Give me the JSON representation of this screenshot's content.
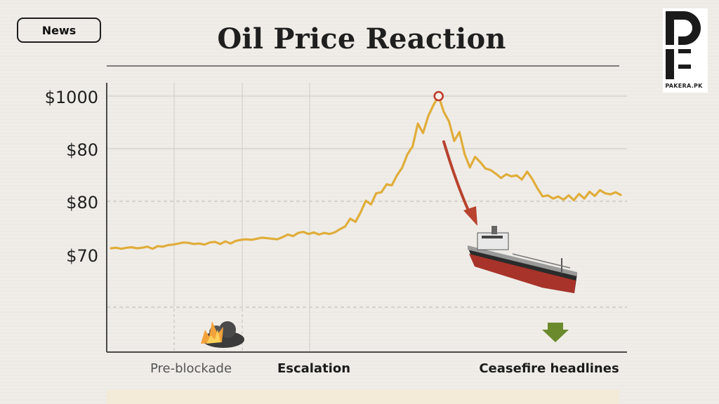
{
  "badge": {
    "label": "News"
  },
  "logo": {
    "text": "PAKERA.PK"
  },
  "chart_data": {
    "type": "line",
    "title": "Oil Price Reaction",
    "xlabel": "",
    "ylabel": "",
    "y_tick_labels": [
      "$1000",
      "$80",
      "$80",
      "$70"
    ],
    "phases": [
      "Pre-blockade",
      "Escalation",
      "Ceasefire headlines"
    ],
    "series": [
      {
        "color": "#e0ad3a",
        "values": [
          71.2,
          71.3,
          71.1,
          71.3,
          71.4,
          71.2,
          71.3,
          71.5,
          71.1,
          71.6,
          71.5,
          71.8,
          71.9,
          72.1,
          72.3,
          72.2,
          72.0,
          72.1,
          71.9,
          72.3,
          72.4,
          72.0,
          72.5,
          72.1,
          72.6,
          72.8,
          72.9,
          72.8,
          73.0,
          73.2,
          73.1,
          73.0,
          72.9,
          73.3,
          73.8,
          73.5,
          74.1,
          74.3,
          73.9,
          74.2,
          73.8,
          74.1,
          73.9,
          74.2,
          74.8,
          75.3,
          76.8,
          76.2,
          78.0,
          80.2,
          79.5,
          81.6,
          81.8,
          83.3,
          83.1,
          85.0,
          86.5,
          89.0,
          90.5,
          94.8,
          93.0,
          96.2,
          98.3,
          100.0,
          97.0,
          95.2,
          91.5,
          93.2,
          89.0,
          86.5,
          88.5,
          87.5,
          86.3,
          86.0,
          85.3,
          84.5,
          85.2,
          84.8,
          85.0,
          84.2,
          85.7,
          84.3,
          82.5,
          81.0,
          81.2,
          80.6,
          81.0,
          80.4,
          81.2,
          80.3,
          81.5,
          80.6,
          81.9,
          81.1,
          82.2,
          81.6,
          81.4,
          81.8,
          81.3
        ]
      }
    ],
    "annotations": [
      {
        "type": "peak-marker",
        "label": "peak"
      },
      {
        "type": "arrow",
        "label": "decline"
      },
      {
        "type": "icon",
        "label": "oil tanker"
      },
      {
        "type": "icon",
        "label": "explosion"
      },
      {
        "type": "icon",
        "label": "down arrow"
      }
    ],
    "grid": true,
    "legend": "none"
  },
  "bottom_caption": {
    "text": ""
  }
}
